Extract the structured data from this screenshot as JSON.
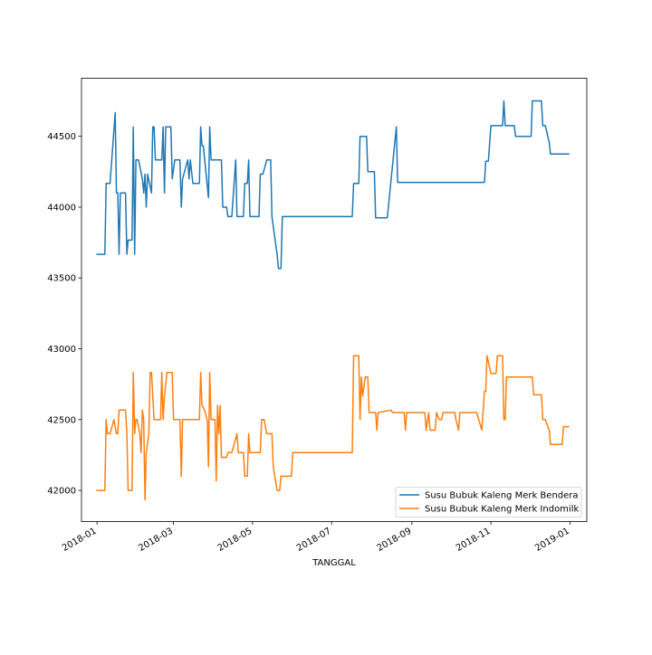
{
  "chart_data": {
    "type": "line",
    "title": "",
    "xlabel": "TANGGAL",
    "ylabel": "",
    "x_range": [
      "2017-12-20",
      "2019-01-14"
    ],
    "ylim": [
      41780,
      44910
    ],
    "yticks": [
      42000,
      42500,
      43000,
      43500,
      44000,
      44500
    ],
    "xticks": [
      "2018-01",
      "2018-03",
      "2018-05",
      "2018-07",
      "2018-09",
      "2018-11",
      "2019-01"
    ],
    "grid": false,
    "legend_placement": "lower right",
    "series": [
      {
        "name": "Susu Bubuk Kaleng Merk Bendera",
        "color": "#1f77b4",
        "points": [
          [
            "2018-01-01",
            43667
          ],
          [
            "2018-01-07",
            43667
          ],
          [
            "2018-01-08",
            44167
          ],
          [
            "2018-01-11",
            44167
          ],
          [
            "2018-01-15",
            44667
          ],
          [
            "2018-01-16",
            44100
          ],
          [
            "2018-01-17",
            44100
          ],
          [
            "2018-01-18",
            43667
          ],
          [
            "2018-01-19",
            44100
          ],
          [
            "2018-01-23",
            44100
          ],
          [
            "2018-01-24",
            43667
          ],
          [
            "2018-01-25",
            43767
          ],
          [
            "2018-01-28",
            43767
          ],
          [
            "2018-01-29",
            44567
          ],
          [
            "2018-01-30",
            43667
          ],
          [
            "2018-01-31",
            44333
          ],
          [
            "2018-02-02",
            44333
          ],
          [
            "2018-02-05",
            44200
          ],
          [
            "2018-02-06",
            44100
          ],
          [
            "2018-02-07",
            44233
          ],
          [
            "2018-02-08",
            44000
          ],
          [
            "2018-02-09",
            44233
          ],
          [
            "2018-02-12",
            44100
          ],
          [
            "2018-02-13",
            44567
          ],
          [
            "2018-02-14",
            44567
          ],
          [
            "2018-02-15",
            44333
          ],
          [
            "2018-02-20",
            44333
          ],
          [
            "2018-02-21",
            44567
          ],
          [
            "2018-02-22",
            44100
          ],
          [
            "2018-02-23",
            44567
          ],
          [
            "2018-02-27",
            44567
          ],
          [
            "2018-02-28",
            44200
          ],
          [
            "2018-03-02",
            44333
          ],
          [
            "2018-03-06",
            44333
          ],
          [
            "2018-03-07",
            44000
          ],
          [
            "2018-03-08",
            44200
          ],
          [
            "2018-03-12",
            44333
          ],
          [
            "2018-03-13",
            44200
          ],
          [
            "2018-03-14",
            44333
          ],
          [
            "2018-03-16",
            44167
          ],
          [
            "2018-03-21",
            44167
          ],
          [
            "2018-03-22",
            44567
          ],
          [
            "2018-03-23",
            44433
          ],
          [
            "2018-03-24",
            44433
          ],
          [
            "2018-03-28",
            44067
          ],
          [
            "2018-03-29",
            44567
          ],
          [
            "2018-03-30",
            44333
          ],
          [
            "2018-04-07",
            44333
          ],
          [
            "2018-04-08",
            44000
          ],
          [
            "2018-04-11",
            44000
          ],
          [
            "2018-04-12",
            43933
          ],
          [
            "2018-04-15",
            43933
          ],
          [
            "2018-04-18",
            44333
          ],
          [
            "2018-04-19",
            43933
          ],
          [
            "2018-04-24",
            43933
          ],
          [
            "2018-04-25",
            44167
          ],
          [
            "2018-04-27",
            44167
          ],
          [
            "2018-04-28",
            44333
          ],
          [
            "2018-04-29",
            43933
          ],
          [
            "2018-05-06",
            43933
          ],
          [
            "2018-05-07",
            44233
          ],
          [
            "2018-05-09",
            44233
          ],
          [
            "2018-05-12",
            44333
          ],
          [
            "2018-05-15",
            44333
          ],
          [
            "2018-05-16",
            43933
          ],
          [
            "2018-05-20",
            43667
          ],
          [
            "2018-05-21",
            43567
          ],
          [
            "2018-05-23",
            43567
          ],
          [
            "2018-05-24",
            43933
          ],
          [
            "2018-07-17",
            43933
          ],
          [
            "2018-07-18",
            44167
          ],
          [
            "2018-07-22",
            44167
          ],
          [
            "2018-07-23",
            44500
          ],
          [
            "2018-07-28",
            44500
          ],
          [
            "2018-07-29",
            44250
          ],
          [
            "2018-08-03",
            44250
          ],
          [
            "2018-08-04",
            43925
          ],
          [
            "2018-08-13",
            43925
          ],
          [
            "2018-08-20",
            44567
          ],
          [
            "2018-08-21",
            44175
          ],
          [
            "2018-10-27",
            44175
          ],
          [
            "2018-10-28",
            44325
          ],
          [
            "2018-10-30",
            44325
          ],
          [
            "2018-11-01",
            44575
          ],
          [
            "2018-11-10",
            44575
          ],
          [
            "2018-11-11",
            44750
          ],
          [
            "2018-11-12",
            44575
          ],
          [
            "2018-11-19",
            44575
          ],
          [
            "2018-11-20",
            44500
          ],
          [
            "2018-12-02",
            44500
          ],
          [
            "2018-12-03",
            44750
          ],
          [
            "2018-12-10",
            44750
          ],
          [
            "2018-12-11",
            44575
          ],
          [
            "2018-12-13",
            44575
          ],
          [
            "2018-12-16",
            44458
          ],
          [
            "2018-12-17",
            44375
          ],
          [
            "2018-12-31",
            44375
          ]
        ]
      },
      {
        "name": "Susu Bubuk Kaleng Merk Indomilk",
        "color": "#ff7f0e",
        "points": [
          [
            "2018-01-01",
            42000
          ],
          [
            "2018-01-07",
            42000
          ],
          [
            "2018-01-08",
            42500
          ],
          [
            "2018-01-09",
            42400
          ],
          [
            "2018-01-11",
            42400
          ],
          [
            "2018-01-14",
            42500
          ],
          [
            "2018-01-16",
            42400
          ],
          [
            "2018-01-17",
            42400
          ],
          [
            "2018-01-18",
            42567
          ],
          [
            "2018-01-23",
            42567
          ],
          [
            "2018-01-24",
            42400
          ],
          [
            "2018-01-25",
            42000
          ],
          [
            "2018-01-28",
            42000
          ],
          [
            "2018-01-29",
            42833
          ],
          [
            "2018-01-30",
            42400
          ],
          [
            "2018-01-31",
            42500
          ],
          [
            "2018-02-01",
            42500
          ],
          [
            "2018-02-03",
            42400
          ],
          [
            "2018-02-04",
            42267
          ],
          [
            "2018-02-05",
            42567
          ],
          [
            "2018-02-06",
            42500
          ],
          [
            "2018-02-07",
            41933
          ],
          [
            "2018-02-08",
            42267
          ],
          [
            "2018-02-10",
            42400
          ],
          [
            "2018-02-11",
            42833
          ],
          [
            "2018-02-12",
            42833
          ],
          [
            "2018-02-14",
            42500
          ],
          [
            "2018-02-19",
            42500
          ],
          [
            "2018-02-20",
            42833
          ],
          [
            "2018-02-21",
            42500
          ],
          [
            "2018-02-22",
            42667
          ],
          [
            "2018-02-24",
            42833
          ],
          [
            "2018-02-28",
            42833
          ],
          [
            "2018-03-01",
            42500
          ],
          [
            "2018-03-06",
            42500
          ],
          [
            "2018-03-07",
            42100
          ],
          [
            "2018-03-08",
            42500
          ],
          [
            "2018-03-21",
            42500
          ],
          [
            "2018-03-22",
            42833
          ],
          [
            "2018-03-23",
            42600
          ],
          [
            "2018-03-25",
            42567
          ],
          [
            "2018-03-27",
            42500
          ],
          [
            "2018-03-28",
            42167
          ],
          [
            "2018-03-29",
            42833
          ],
          [
            "2018-03-30",
            42500
          ],
          [
            "2018-04-02",
            42500
          ],
          [
            "2018-04-03",
            42067
          ],
          [
            "2018-04-04",
            42600
          ],
          [
            "2018-04-05",
            42400
          ],
          [
            "2018-04-06",
            42600
          ],
          [
            "2018-04-07",
            42233
          ],
          [
            "2018-04-11",
            42233
          ],
          [
            "2018-04-12",
            42267
          ],
          [
            "2018-04-15",
            42267
          ],
          [
            "2018-04-19",
            42400
          ],
          [
            "2018-04-20",
            42267
          ],
          [
            "2018-04-24",
            42267
          ],
          [
            "2018-04-25",
            42100
          ],
          [
            "2018-04-27",
            42100
          ],
          [
            "2018-04-28",
            42400
          ],
          [
            "2018-04-29",
            42267
          ],
          [
            "2018-05-06",
            42267
          ],
          [
            "2018-05-07",
            42267
          ],
          [
            "2018-05-08",
            42500
          ],
          [
            "2018-05-10",
            42500
          ],
          [
            "2018-05-12",
            42400
          ],
          [
            "2018-05-16",
            42400
          ],
          [
            "2018-05-17",
            42167
          ],
          [
            "2018-05-20",
            42000
          ],
          [
            "2018-05-22",
            42000
          ],
          [
            "2018-05-23",
            42100
          ],
          [
            "2018-05-31",
            42100
          ],
          [
            "2018-06-01",
            42267
          ],
          [
            "2018-07-17",
            42267
          ],
          [
            "2018-07-18",
            42950
          ],
          [
            "2018-07-22",
            42950
          ],
          [
            "2018-07-23",
            42500
          ],
          [
            "2018-07-24",
            42800
          ],
          [
            "2018-07-25",
            42667
          ],
          [
            "2018-07-27",
            42800
          ],
          [
            "2018-07-29",
            42800
          ],
          [
            "2018-07-30",
            42550
          ],
          [
            "2018-08-04",
            42550
          ],
          [
            "2018-08-05",
            42425
          ],
          [
            "2018-08-06",
            42550
          ],
          [
            "2018-08-16",
            42567
          ],
          [
            "2018-08-17",
            42550
          ],
          [
            "2018-08-26",
            42550
          ],
          [
            "2018-08-27",
            42425
          ],
          [
            "2018-08-28",
            42550
          ],
          [
            "2018-09-11",
            42550
          ],
          [
            "2018-09-12",
            42425
          ],
          [
            "2018-09-14",
            42550
          ],
          [
            "2018-09-15",
            42425
          ],
          [
            "2018-09-19",
            42425
          ],
          [
            "2018-09-20",
            42550
          ],
          [
            "2018-09-22",
            42500
          ],
          [
            "2018-09-24",
            42500
          ],
          [
            "2018-09-25",
            42550
          ],
          [
            "2018-10-04",
            42550
          ],
          [
            "2018-10-05",
            42500
          ],
          [
            "2018-10-07",
            42425
          ],
          [
            "2018-10-08",
            42550
          ],
          [
            "2018-10-21",
            42550
          ],
          [
            "2018-10-25",
            42425
          ],
          [
            "2018-10-27",
            42700
          ],
          [
            "2018-10-28",
            42700
          ],
          [
            "2018-10-29",
            42950
          ],
          [
            "2018-11-01",
            42825
          ],
          [
            "2018-11-05",
            42825
          ],
          [
            "2018-11-06",
            42950
          ],
          [
            "2018-11-10",
            42950
          ],
          [
            "2018-11-11",
            42500
          ],
          [
            "2018-11-12",
            42500
          ],
          [
            "2018-11-13",
            42800
          ],
          [
            "2018-12-03",
            42800
          ],
          [
            "2018-12-04",
            42675
          ],
          [
            "2018-12-10",
            42675
          ],
          [
            "2018-12-11",
            42500
          ],
          [
            "2018-12-13",
            42500
          ],
          [
            "2018-12-16",
            42425
          ],
          [
            "2018-12-17",
            42325
          ],
          [
            "2018-12-26",
            42325
          ],
          [
            "2018-12-27",
            42450
          ],
          [
            "2018-12-31",
            42450
          ]
        ]
      }
    ]
  }
}
